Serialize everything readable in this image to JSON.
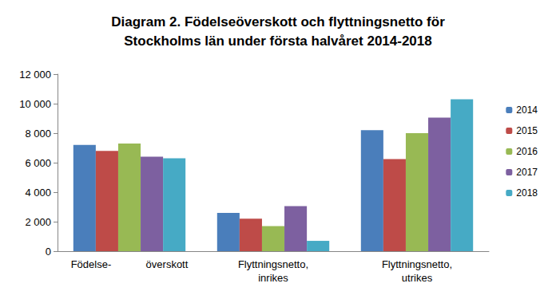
{
  "chart_data": {
    "type": "bar",
    "title": "Diagram 2. Födelseöverskott och flyttningsnetto för\nStockholms län under första halvåret 2014-2018",
    "categories": [
      "Födelse-            överskott",
      "Flyttningsnetto,\ninrikes",
      "Flyttningsnetto,\nutrikes"
    ],
    "series": [
      {
        "name": "2014",
        "color": "#4a7ebb",
        "values": [
          7200,
          2600,
          8200
        ]
      },
      {
        "name": "2015",
        "color": "#be4b48",
        "values": [
          6800,
          2200,
          6250
        ]
      },
      {
        "name": "2016",
        "color": "#98b954",
        "values": [
          7300,
          1700,
          8000
        ]
      },
      {
        "name": "2017",
        "color": "#7d60a0",
        "values": [
          6400,
          3050,
          9050
        ]
      },
      {
        "name": "2018",
        "color": "#46aac5",
        "values": [
          6300,
          700,
          10300
        ]
      }
    ],
    "ylim": [
      0,
      12000
    ],
    "yticks": [
      0,
      {
        "value": 2000,
        "label": "2 000"
      },
      {
        "value": 4000,
        "label": "4 000"
      },
      {
        "value": 6000,
        "label": "6 000"
      },
      {
        "value": 8000,
        "label": "8 000"
      },
      {
        "value": 10000,
        "label": "10 000"
      },
      {
        "value": 12000,
        "label": "12 000"
      }
    ],
    "grid": false,
    "legend": "right"
  }
}
